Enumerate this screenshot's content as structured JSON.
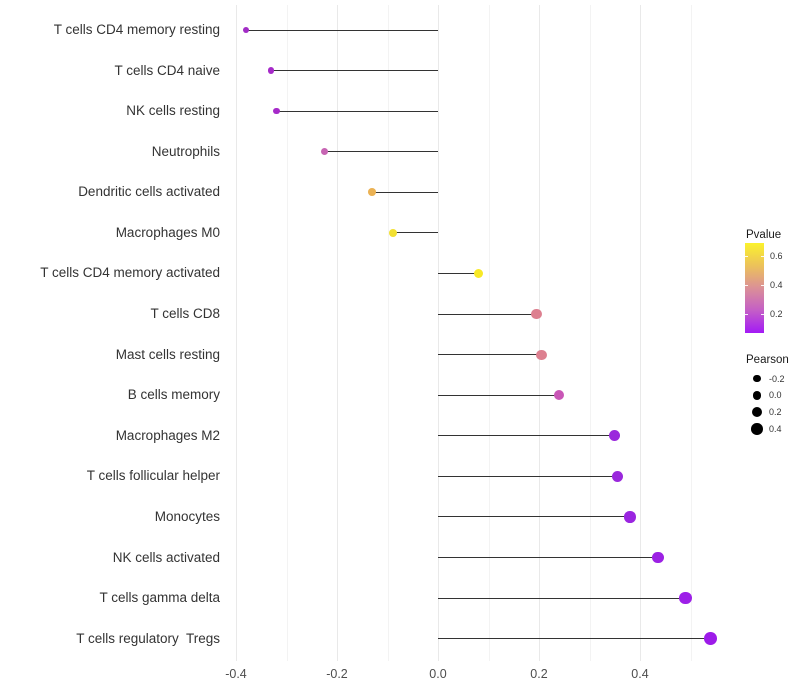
{
  "chart_data": {
    "type": "scatter",
    "variant": "lollipop",
    "title": "",
    "xlabel": "",
    "ylabel": "",
    "xlim": [
      -0.45,
      0.58
    ],
    "grid": "on",
    "x_ticks": {
      "values": [
        -0.4,
        -0.2,
        0.0,
        0.2,
        0.4
      ],
      "labels": [
        "-0.4",
        "-0.2",
        "0.0",
        "0.2",
        "0.4"
      ]
    },
    "grid_minor": [
      -0.3,
      -0.1,
      0.1,
      0.3,
      0.5
    ],
    "points": [
      {
        "label": "T cells CD4 memory resting",
        "pearson": -0.38,
        "pvalue_approx": 0.1,
        "color": "#a22cc6"
      },
      {
        "label": "T cells CD4 naive",
        "pearson": -0.33,
        "pvalue_approx": 0.1,
        "color": "#a62ac9"
      },
      {
        "label": "NK cells resting",
        "pearson": -0.32,
        "pvalue_approx": 0.1,
        "color": "#a62ac9"
      },
      {
        "label": "Neutrophils",
        "pearson": -0.225,
        "pvalue_approx": 0.22,
        "color": "#c765b3"
      },
      {
        "label": "Dendritic cells activated",
        "pearson": -0.13,
        "pvalue_approx": 0.48,
        "color": "#ebb254"
      },
      {
        "label": "Macrophages M0",
        "pearson": -0.09,
        "pvalue_approx": 0.6,
        "color": "#f2e032"
      },
      {
        "label": "T cells CD4 memory activated",
        "pearson": 0.08,
        "pvalue_approx": 0.65,
        "color": "#f8e926"
      },
      {
        "label": "T cells CD8",
        "pearson": 0.195,
        "pvalue_approx": 0.38,
        "color": "#dd8090"
      },
      {
        "label": "Mast cells resting",
        "pearson": 0.205,
        "pvalue_approx": 0.38,
        "color": "#dd8090"
      },
      {
        "label": "B cells memory",
        "pearson": 0.24,
        "pvalue_approx": 0.2,
        "color": "#c956b6"
      },
      {
        "label": "Macrophages M2",
        "pearson": 0.35,
        "pvalue_approx": 0.05,
        "color": "#9a28dc"
      },
      {
        "label": "T cells follicular helper",
        "pearson": 0.355,
        "pvalue_approx": 0.05,
        "color": "#9a28dc"
      },
      {
        "label": "Monocytes",
        "pearson": 0.38,
        "pvalue_approx": 0.04,
        "color": "#9a25e0"
      },
      {
        "label": "NK cells activated",
        "pearson": 0.435,
        "pvalue_approx": 0.03,
        "color": "#9c21e4"
      },
      {
        "label": "T cells gamma delta",
        "pearson": 0.49,
        "pvalue_approx": 0.02,
        "color": "#9d1fe8"
      },
      {
        "label": "T cells regulatory  Tregs",
        "pearson": 0.54,
        "pvalue_approx": 0.02,
        "color": "#9d1be9"
      }
    ],
    "legend_pvalue": {
      "title": "Pvalue",
      "tick_labels": [
        "0.6",
        "0.4",
        "0.2"
      ],
      "gradient_top_to_bottom": [
        "#fbf22d",
        "#ecc25a",
        "#db9097",
        "#c45ec7",
        "#a31af5"
      ]
    },
    "legend_pearson": {
      "title": "Pearson",
      "items": [
        {
          "label": "-0.2",
          "size": 7.3
        },
        {
          "label": "0.0",
          "size": 8.7
        },
        {
          "label": "0.2",
          "size": 10
        },
        {
          "label": "0.4",
          "size": 11.7
        }
      ],
      "dot_color": "#000000"
    },
    "stem_color": "#333333",
    "legend_position": "right"
  }
}
